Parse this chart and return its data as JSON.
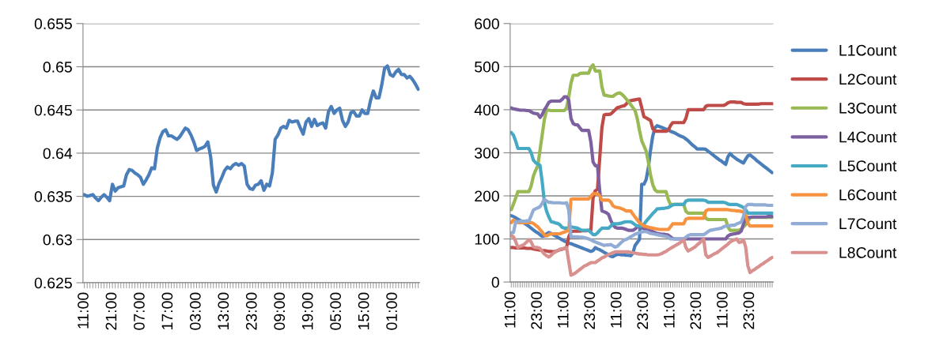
{
  "chart_data": [
    {
      "type": "line",
      "ylim": [
        0.625,
        0.655
      ],
      "yticks": [
        0.625,
        0.63,
        0.635,
        0.64,
        0.645,
        0.65,
        0.655
      ],
      "categories": [
        "11:00",
        null,
        null,
        null,
        null,
        null,
        null,
        null,
        null,
        null,
        "21:00",
        null,
        null,
        null,
        null,
        null,
        null,
        null,
        null,
        null,
        "07:00",
        null,
        null,
        null,
        null,
        null,
        null,
        null,
        null,
        null,
        "17:00",
        null,
        null,
        null,
        null,
        null,
        null,
        null,
        null,
        null,
        "03:00",
        null,
        null,
        null,
        null,
        null,
        null,
        null,
        null,
        null,
        "13:00",
        null,
        null,
        null,
        null,
        null,
        null,
        null,
        null,
        null,
        "23:00",
        null,
        null,
        null,
        null,
        null,
        null,
        null,
        null,
        null,
        "09:00",
        null,
        null,
        null,
        null,
        null,
        null,
        null,
        null,
        null,
        "19:00",
        null,
        null,
        null,
        null,
        null,
        null,
        null,
        null,
        null,
        "05:00",
        null,
        null,
        null,
        null,
        null,
        null,
        null,
        null,
        null,
        "15:00",
        null,
        null,
        null,
        null,
        null,
        null,
        null,
        null,
        null,
        "01:00",
        null,
        null,
        null,
        null,
        null,
        null,
        null,
        null,
        null
      ],
      "grid": "y",
      "legend": false,
      "marker": "none",
      "line_style": "solid",
      "series": [
        {
          "color": "#4a7ebb",
          "values": [
            0.6352,
            0.635,
            0.6351,
            0.6352,
            0.6348,
            0.6345,
            0.6349,
            0.6352,
            0.6349,
            0.6345,
            0.6364,
            0.6356,
            0.636,
            0.6361,
            0.6362,
            0.6375,
            0.6381,
            0.638,
            0.6377,
            0.6375,
            0.6372,
            0.6364,
            0.6369,
            0.6375,
            0.6383,
            0.6382,
            0.6406,
            0.6418,
            0.6425,
            0.6427,
            0.642,
            0.642,
            0.6418,
            0.6416,
            0.6419,
            0.6424,
            0.6429,
            0.6427,
            0.6421,
            0.6413,
            0.6403,
            0.6405,
            0.6406,
            0.6408,
            0.6413,
            0.6396,
            0.6363,
            0.6355,
            0.6365,
            0.6372,
            0.638,
            0.6384,
            0.6382,
            0.6386,
            0.6388,
            0.6386,
            0.6388,
            0.6385,
            0.6364,
            0.6359,
            0.6358,
            0.6363,
            0.6364,
            0.6368,
            0.6357,
            0.6364,
            0.6362,
            0.6377,
            0.6416,
            0.6421,
            0.6429,
            0.6431,
            0.6429,
            0.6438,
            0.6436,
            0.6437,
            0.6437,
            0.6429,
            0.6422,
            0.6436,
            0.644,
            0.6431,
            0.6439,
            0.6432,
            0.6434,
            0.6435,
            0.6429,
            0.6448,
            0.6454,
            0.6446,
            0.645,
            0.6452,
            0.6438,
            0.6431,
            0.6436,
            0.6447,
            0.6448,
            0.6443,
            0.6443,
            0.645,
            0.6446,
            0.6446,
            0.6461,
            0.6472,
            0.6464,
            0.6464,
            0.6479,
            0.6498,
            0.6501,
            0.6491,
            0.6489,
            0.6494,
            0.6497,
            0.6491,
            0.6491,
            0.6487,
            0.6489,
            0.6485,
            0.648,
            0.6474
          ]
        }
      ]
    },
    {
      "type": "line",
      "ylim": [
        0,
        600
      ],
      "yticks": [
        0,
        100,
        200,
        300,
        400,
        500,
        600
      ],
      "categories": [
        "11:00",
        null,
        null,
        null,
        null,
        null,
        null,
        null,
        null,
        null,
        null,
        null,
        "23:00",
        null,
        null,
        null,
        null,
        null,
        null,
        null,
        null,
        null,
        null,
        null,
        "11:00",
        null,
        null,
        null,
        null,
        null,
        null,
        null,
        null,
        null,
        null,
        null,
        "23:00",
        null,
        null,
        null,
        null,
        null,
        null,
        null,
        null,
        null,
        null,
        null,
        "11:00",
        null,
        null,
        null,
        null,
        null,
        null,
        null,
        null,
        null,
        null,
        null,
        "23:00",
        null,
        null,
        null,
        null,
        null,
        null,
        null,
        null,
        null,
        null,
        null,
        "11:00",
        null,
        null,
        null,
        null,
        null,
        null,
        null,
        null,
        null,
        null,
        null,
        "23:00",
        null,
        null,
        null,
        null,
        null,
        null,
        null,
        null,
        null,
        null,
        null,
        "11:00",
        null,
        null,
        null,
        null,
        null,
        null,
        null,
        null,
        null,
        null,
        null,
        "23:00",
        null,
        null,
        null,
        null,
        null,
        null,
        null,
        null,
        null,
        null
      ],
      "grid": "y",
      "legend": "right",
      "marker": "none",
      "line_style": "solid",
      "series": [
        {
          "name": "L1Count",
          "color": "#4a7ebb",
          "values": [
            154,
            152,
            149,
            146,
            143,
            140,
            136,
            133,
            129,
            125,
            121,
            117,
            114,
            110,
            106,
            107,
            112,
            115,
            113,
            110,
            107,
            104,
            101,
            98,
            95,
            93,
            90,
            89,
            87,
            85,
            83,
            81,
            79,
            77,
            75,
            73,
            71,
            73,
            80,
            77,
            75,
            72,
            69,
            66,
            63,
            60,
            59,
            62,
            64,
            64,
            63,
            63,
            62,
            62,
            61,
            67,
            85,
            92,
            99,
            227,
            227,
            238,
            266,
            306,
            339,
            358,
            363,
            361,
            359,
            357,
            355,
            353,
            350,
            348,
            346,
            343,
            340,
            338,
            336,
            332,
            328,
            323,
            318,
            314,
            309,
            309,
            309,
            309,
            308,
            304,
            300,
            296,
            292,
            288,
            284,
            281,
            277,
            273,
            291,
            298,
            293,
            289,
            285,
            282,
            279,
            276,
            285,
            293,
            295,
            291,
            287,
            282,
            278,
            274,
            270,
            266,
            262,
            258,
            254
          ]
        },
        {
          "name": "L2Count",
          "color": "#be4b48",
          "values": [
            80,
            80,
            79,
            79,
            79,
            79,
            79,
            78,
            78,
            78,
            77,
            76,
            75,
            74,
            73,
            73,
            72,
            71,
            71,
            70,
            71,
            73,
            75,
            76,
            78,
            80,
            105,
            117,
            118,
            118,
            118,
            118,
            119,
            119,
            119,
            120,
            120,
            195,
            212,
            215,
            287,
            359,
            388,
            389,
            389,
            390,
            395,
            400,
            405,
            406,
            408,
            409,
            413,
            420,
            421,
            422,
            423,
            424,
            425,
            405,
            384,
            381,
            378,
            375,
            356,
            350,
            350,
            350,
            350,
            350,
            350,
            352,
            363,
            370,
            370,
            370,
            370,
            370,
            370,
            380,
            400,
            400,
            400,
            400,
            400,
            400,
            400,
            400,
            408,
            410,
            410,
            410,
            410,
            410,
            410,
            410,
            410,
            412,
            416,
            418,
            418,
            418,
            417,
            417,
            417,
            414,
            413,
            413,
            413,
            413,
            413,
            413,
            413,
            414,
            414,
            414,
            414,
            414,
            414
          ]
        },
        {
          "name": "L3Count",
          "color": "#98b954",
          "values": [
            168,
            181,
            195,
            210,
            210,
            210,
            210,
            210,
            210,
            223,
            246,
            259,
            270,
            306,
            342,
            378,
            400,
            399,
            398,
            398,
            398,
            398,
            398,
            398,
            398,
            404,
            430,
            461,
            480,
            480,
            480,
            484,
            485,
            485,
            485,
            485,
            498,
            504,
            490,
            490,
            490,
            453,
            434,
            433,
            432,
            431,
            431,
            435,
            438,
            439,
            436,
            431,
            425,
            419,
            412,
            405,
            398,
            379,
            352,
            328,
            316,
            304,
            279,
            248,
            226,
            214,
            210,
            210,
            210,
            210,
            210,
            192,
            180,
            180,
            180,
            180,
            180,
            180,
            180,
            164,
            160,
            160,
            160,
            160,
            160,
            160,
            160,
            160,
            148,
            145,
            145,
            145,
            145,
            145,
            145,
            145,
            145,
            145,
            128,
            120,
            120,
            120,
            120,
            120,
            123,
            128,
            133,
            141,
            149,
            150,
            150,
            150,
            150,
            150,
            150,
            150,
            150,
            150,
            150
          ]
        },
        {
          "name": "L4Count",
          "color": "#7d60a0",
          "values": [
            404,
            402,
            401,
            400,
            399,
            399,
            399,
            398,
            398,
            395,
            392,
            391,
            390,
            382,
            389,
            400,
            408,
            417,
            420,
            420,
            420,
            420,
            420,
            424,
            430,
            430,
            422,
            380,
            368,
            365,
            365,
            358,
            352,
            352,
            352,
            352,
            325,
            279,
            270,
            270,
            212,
            165,
            163,
            161,
            157,
            143,
            133,
            127,
            125,
            125,
            125,
            124,
            122,
            120,
            120,
            120,
            123,
            128,
            129,
            126,
            124,
            122,
            121,
            119,
            117,
            115,
            113,
            112,
            111,
            111,
            110,
            109,
            105,
            101,
            100,
            100,
            100,
            100,
            100,
            100,
            100,
            100,
            100,
            100,
            100,
            100,
            100,
            100,
            100,
            100,
            100,
            100,
            100,
            100,
            100,
            100,
            100,
            100,
            107,
            110,
            111,
            112,
            113,
            114,
            118,
            134,
            150,
            150,
            150,
            151,
            151,
            151,
            151,
            151,
            151,
            151,
            152,
            152,
            152
          ]
        },
        {
          "name": "L5Count",
          "color": "#46aac5",
          "values": [
            347,
            341,
            327,
            310,
            310,
            310,
            310,
            310,
            310,
            300,
            283,
            277,
            274,
            271,
            232,
            185,
            164,
            151,
            140,
            139,
            137,
            136,
            133,
            127,
            125,
            125,
            126,
            128,
            127,
            126,
            125,
            122,
            120,
            120,
            120,
            120,
            115,
            110,
            110,
            114,
            120,
            125,
            125,
            125,
            125,
            130,
            135,
            135,
            135,
            136,
            137,
            139,
            140,
            140,
            140,
            137,
            133,
            130,
            130,
            130,
            134,
            141,
            147,
            153,
            159,
            164,
            170,
            170,
            171,
            171,
            172,
            173,
            176,
            179,
            180,
            180,
            180,
            180,
            180,
            188,
            190,
            190,
            190,
            190,
            190,
            190,
            190,
            190,
            189,
            185,
            185,
            185,
            185,
            185,
            185,
            185,
            185,
            184,
            181,
            180,
            180,
            180,
            180,
            178,
            176,
            173,
            168,
            160,
            160,
            160,
            160,
            160,
            160,
            160,
            160,
            160,
            160,
            160,
            160
          ]
        },
        {
          "name": "L6Count",
          "color": "#f69240",
          "values": [
            138,
            144,
            141,
            138,
            138,
            138,
            138,
            138,
            138,
            138,
            136,
            132,
            128,
            122,
            116,
            109,
            107,
            110,
            112,
            112,
            112,
            112,
            112,
            114,
            116,
            118,
            120,
            192,
            193,
            193,
            193,
            193,
            193,
            193,
            193,
            193,
            199,
            205,
            205,
            205,
            200,
            190,
            190,
            190,
            190,
            186,
            177,
            174,
            173,
            172,
            170,
            168,
            165,
            165,
            165,
            158,
            151,
            144,
            138,
            134,
            130,
            129,
            127,
            126,
            125,
            124,
            123,
            122,
            122,
            122,
            122,
            122,
            128,
            135,
            135,
            135,
            135,
            135,
            135,
            146,
            148,
            148,
            148,
            148,
            148,
            148,
            148,
            148,
            165,
            168,
            168,
            168,
            168,
            168,
            168,
            168,
            168,
            168,
            168,
            167,
            166,
            166,
            165,
            165,
            164,
            163,
            156,
            137,
            130,
            130,
            130,
            130,
            130,
            130,
            130,
            130,
            130,
            130,
            130
          ]
        },
        {
          "name": "L7Count",
          "color": "#91acd5",
          "values": [
            114,
            115,
            140,
            140,
            141,
            141,
            141,
            142,
            142,
            154,
            167,
            170,
            172,
            175,
            183,
            192,
            188,
            185,
            185,
            184,
            184,
            184,
            184,
            183,
            183,
            184,
            167,
            105,
            105,
            105,
            105,
            104,
            104,
            103,
            102,
            100,
            98,
            95,
            93,
            91,
            89,
            87,
            85,
            86,
            86,
            87,
            84,
            81,
            83,
            88,
            93,
            97,
            99,
            102,
            105,
            108,
            111,
            113,
            115,
            116,
            117,
            117,
            115,
            113,
            112,
            111,
            110,
            109,
            108,
            107,
            106,
            104,
            100,
            100,
            100,
            100,
            100,
            100,
            100,
            104,
            108,
            110,
            110,
            110,
            110,
            110,
            110,
            110,
            113,
            117,
            120,
            121,
            122,
            123,
            124,
            125,
            128,
            130,
            130,
            131,
            132,
            132,
            135,
            137,
            139,
            152,
            175,
            180,
            180,
            180,
            179,
            179,
            179,
            179,
            179,
            179,
            178,
            178,
            178
          ]
        },
        {
          "name": "L8Count",
          "color": "#d8918f",
          "values": [
            107,
            105,
            94,
            80,
            83,
            85,
            88,
            93,
            98,
            93,
            82,
            80,
            80,
            78,
            71,
            65,
            61,
            58,
            62,
            67,
            70,
            73,
            76,
            77,
            78,
            80,
            48,
            16,
            18,
            21,
            25,
            29,
            33,
            37,
            39,
            42,
            45,
            45,
            45,
            49,
            52,
            56,
            58,
            61,
            64,
            66,
            68,
            70,
            70,
            70,
            70,
            70,
            70,
            70,
            69,
            68,
            67,
            66,
            65,
            65,
            64,
            64,
            63,
            63,
            63,
            63,
            63,
            64,
            66,
            69,
            71,
            75,
            78,
            81,
            84,
            87,
            90,
            94,
            98,
            80,
            72,
            75,
            78,
            81,
            86,
            90,
            95,
            100,
            63,
            57,
            60,
            63,
            66,
            68,
            72,
            76,
            80,
            84,
            88,
            93,
            96,
            98,
            100,
            92,
            93,
            98,
            82,
            38,
            22,
            26,
            29,
            33,
            36,
            40,
            43,
            47,
            50,
            54,
            57
          ]
        }
      ]
    }
  ]
}
